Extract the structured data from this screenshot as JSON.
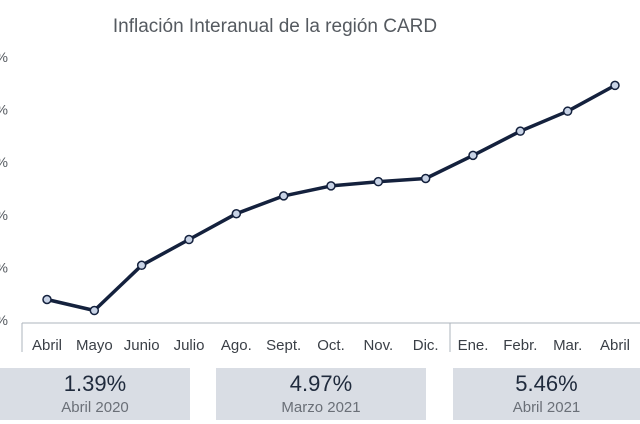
{
  "chart_data": {
    "type": "line",
    "title": "Inflación Interanual de la región CARD",
    "categories": [
      "Abril",
      "Mayo",
      "Junio",
      "Julio",
      "Ago.",
      "Sept.",
      "Oct.",
      "Nov.",
      "Dic.",
      "Ene.",
      "Febr.",
      "Mar.",
      "Abril"
    ],
    "values": [
      1.39,
      1.18,
      2.04,
      2.53,
      3.02,
      3.36,
      3.55,
      3.63,
      3.69,
      4.13,
      4.59,
      4.97,
      5.46
    ],
    "y_tick_labels": [
      "%",
      "%",
      "%",
      "%",
      "%",
      "%"
    ],
    "ylim": [
      1,
      6
    ],
    "grid": false,
    "line_color": "#14213d",
    "marker_fill": "#c8d3e6"
  },
  "stats": [
    {
      "value": "1.39%",
      "label": "Abril 2020"
    },
    {
      "value": "4.97%",
      "label": "Marzo 2021"
    },
    {
      "value": "5.46%",
      "label": "Abril 2021"
    }
  ]
}
